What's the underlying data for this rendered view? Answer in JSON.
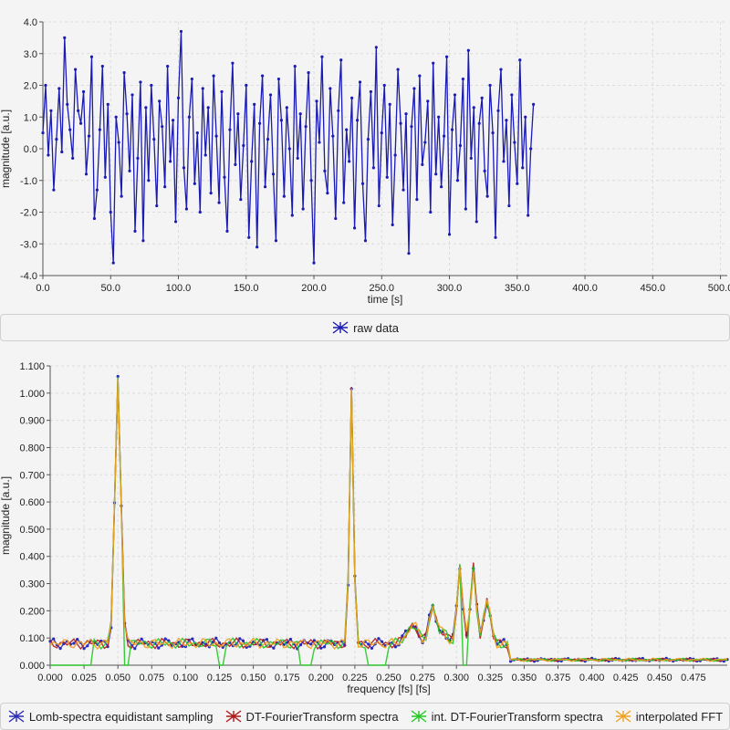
{
  "chart_data": [
    {
      "type": "line",
      "xlabel": "time [s]",
      "ylabel": "magnitude [a.u.]",
      "xlim": [
        0,
        505
      ],
      "ylim": [
        -4.0,
        4.0
      ],
      "xticks": [
        "0.0",
        "50.0",
        "100.0",
        "150.0",
        "200.0",
        "250.0",
        "300.0",
        "350.0",
        "400.0",
        "450.0",
        "500.0"
      ],
      "yticks": [
        "-4.0",
        "-3.0",
        "-2.0",
        "-1.0",
        "0.0",
        "1.0",
        "2.0",
        "3.0",
        "4.0"
      ],
      "grid": true,
      "legend_position": "bottom",
      "series": [
        {
          "name": "raw data",
          "color": "#1a1ab4",
          "x_start": 0,
          "x_step": 2,
          "values": [
            0.5,
            2.0,
            -0.2,
            1.2,
            -1.3,
            0.3,
            1.9,
            -0.1,
            3.5,
            1.4,
            0.6,
            -0.3,
            2.5,
            1.2,
            0.8,
            1.8,
            -0.8,
            0.4,
            2.9,
            -2.2,
            -1.3,
            0.6,
            2.6,
            -0.9,
            1.4,
            -2.0,
            -3.6,
            1.0,
            0.2,
            -1.5,
            2.4,
            1.1,
            -0.7,
            1.7,
            -2.6,
            -0.3,
            2.1,
            -2.9,
            1.3,
            -1.0,
            2.0,
            0.3,
            -1.8,
            1.5,
            0.7,
            -1.2,
            2.6,
            -0.4,
            0.9,
            -2.3,
            1.6,
            3.7,
            -0.6,
            -1.9,
            1.0,
            2.2,
            -1.1,
            0.5,
            -2.0,
            1.9,
            -0.2,
            1.3,
            -1.4,
            2.3,
            0.4,
            -1.7,
            1.8,
            -0.9,
            -2.6,
            0.6,
            2.7,
            -0.5,
            1.1,
            -1.6,
            0.1,
            2.0,
            -2.8,
            -0.4,
            1.4,
            -3.1,
            0.8,
            2.3,
            -1.2,
            0.3,
            1.7,
            -0.8,
            -2.9,
            2.2,
            0.9,
            -1.5,
            1.3,
            0.0,
            -2.1,
            2.6,
            -0.3,
            1.1,
            -1.9,
            0.7,
            2.4,
            -1.0,
            -3.6,
            1.5,
            0.2,
            2.9,
            -0.7,
            -1.4,
            1.9,
            0.4,
            -2.2,
            1.2,
            2.8,
            -1.7,
            0.6,
            -0.4,
            1.6,
            -2.5,
            0.9,
            2.1,
            -1.1,
            -2.9,
            0.3,
            1.8,
            -0.6,
            3.2,
            -1.8,
            0.5,
            2.0,
            -0.9,
            1.4,
            -2.4,
            -0.2,
            2.5,
            0.8,
            -1.3,
            1.1,
            -3.3,
            0.7,
            1.9,
            -1.6,
            2.3,
            -0.5,
            0.2,
            1.5,
            -2.0,
            2.7,
            -0.8,
            1.0,
            -1.2,
            0.4,
            2.9,
            -2.7,
            0.6,
            1.7,
            -1.0,
            0.1,
            2.2,
            -1.9,
            3.1,
            -0.3,
            1.3,
            -2.3,
            0.8,
            1.6,
            -0.7,
            -1.5,
            2.0,
            0.5,
            -2.8,
            1.2,
            2.5,
            -0.4,
            0.9,
            -1.8,
            1.7,
            0.2,
            -1.1,
            2.8,
            -0.6,
            1.0,
            -2.1,
            0.0,
            1.4
          ]
        }
      ]
    },
    {
      "type": "line",
      "xlabel": "frequency [fs] [fs]",
      "ylabel": "magnitude [a.u.]",
      "xlim": [
        0.0,
        0.5
      ],
      "ylim": [
        0.0,
        1.1
      ],
      "xticks": [
        "0.000",
        "0.025",
        "0.050",
        "0.075",
        "0.100",
        "0.125",
        "0.150",
        "0.175",
        "0.200",
        "0.225",
        "0.250",
        "0.275",
        "0.300",
        "0.325",
        "0.350",
        "0.375",
        "0.400",
        "0.425",
        "0.450",
        "0.475"
      ],
      "yticks": [
        "0.000",
        "0.100",
        "0.200",
        "0.300",
        "0.400",
        "0.500",
        "0.600",
        "0.700",
        "0.800",
        "0.900",
        "1.000",
        "1.100"
      ],
      "grid": true,
      "legend_position": "bottom",
      "baseline": 0.08,
      "peaks": [
        [
          0.05,
          1.05,
          0.0022
        ],
        [
          0.2225,
          1.01,
          0.0015
        ],
        [
          0.2825,
          0.22,
          0.0025
        ],
        [
          0.3025,
          0.37,
          0.002
        ],
        [
          0.3125,
          0.36,
          0.002
        ],
        [
          0.3225,
          0.24,
          0.0025
        ],
        [
          0.2675,
          0.15,
          0.004
        ],
        [
          0.29,
          0.12,
          0.003
        ]
      ],
      "dips": [
        [
          0.0,
          0.02
        ],
        [
          0.02,
          0.03
        ],
        [
          0.055,
          0.06
        ],
        [
          0.125,
          0.13
        ],
        [
          0.185,
          0.195
        ],
        [
          0.235,
          0.25
        ],
        [
          0.305,
          0.31
        ]
      ],
      "series": [
        {
          "name": "Lomb-spectra equidistant sampling",
          "color": "#2a2ab8",
          "x_step": 0.0025
        },
        {
          "name": "DT-FourierTransform spectra",
          "color": "#b01818",
          "x_step": 0.0025
        },
        {
          "name": "int. DT-FourierTransform spectra",
          "color": "#22c822",
          "x_step": 0.0025
        },
        {
          "name": "interpolated FFT",
          "color": "#f0a020",
          "x_step": 0.0025
        }
      ]
    }
  ]
}
